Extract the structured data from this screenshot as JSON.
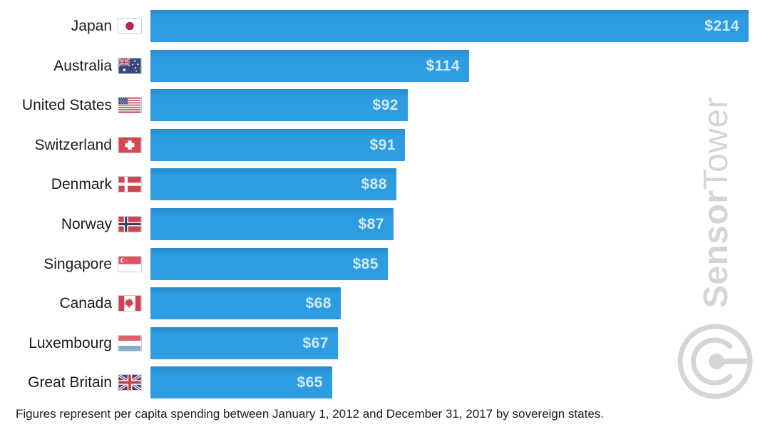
{
  "chart_data": {
    "type": "bar",
    "orientation": "horizontal",
    "title": "",
    "xlabel": "",
    "ylabel": "",
    "grid": false,
    "legend": "none",
    "xlim": [
      0,
      214
    ],
    "categories": [
      "Japan",
      "Australia",
      "United States",
      "Switzerland",
      "Denmark",
      "Norway",
      "Singapore",
      "Canada",
      "Luxembourg",
      "Great Britain"
    ],
    "values": [
      214,
      114,
      92,
      91,
      88,
      87,
      85,
      68,
      67,
      65
    ],
    "value_labels": [
      "$214",
      "$114",
      "$92",
      "$91",
      "$88",
      "$87",
      "$85",
      "$68",
      "$67",
      "$65"
    ],
    "flag_codes": [
      "jp",
      "au",
      "us",
      "ch",
      "dk",
      "no",
      "sg",
      "ca",
      "lu",
      "gb"
    ],
    "bar_color": "#2d9ce0",
    "value_label_color": "#d2ebfa",
    "category_label_color": "#1b1b1b",
    "footnote": "Figures represent per capita spending between January 1, 2012 and December 31, 2017 by sovereign states."
  },
  "watermark": {
    "brand_part_bold": "Sensor",
    "brand_part_light": "Tower",
    "color": "#d5d5d5",
    "logo": "sensortower-circle-logo"
  }
}
